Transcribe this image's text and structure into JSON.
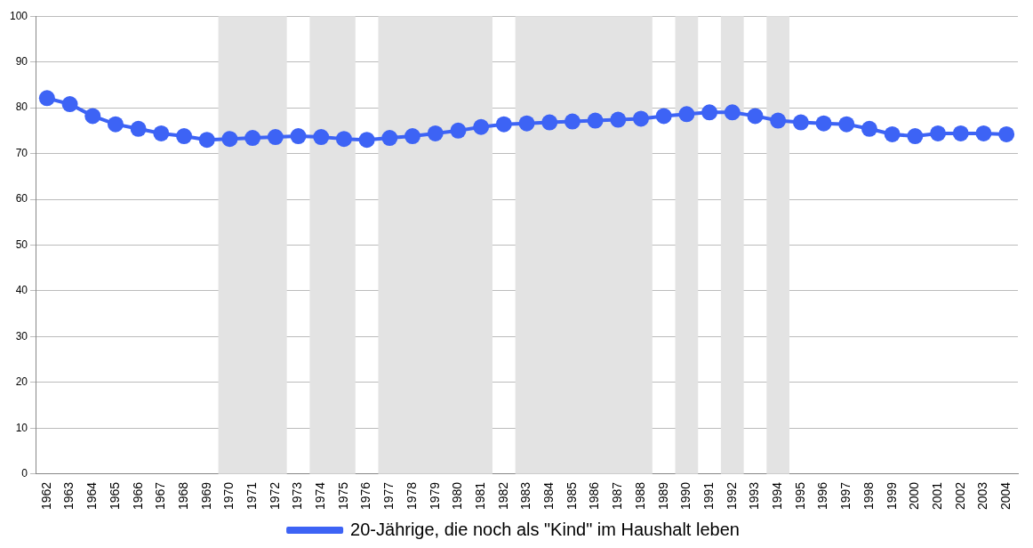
{
  "chart_data": {
    "type": "line",
    "categories": [
      "1962",
      "1963",
      "1964",
      "1965",
      "1966",
      "1967",
      "1968",
      "1969",
      "1970",
      "1971",
      "1972",
      "1973",
      "1974",
      "1975",
      "1976",
      "1977",
      "1978",
      "1979",
      "1980",
      "1981",
      "1982",
      "1983",
      "1984",
      "1985",
      "1986",
      "1987",
      "1988",
      "1989",
      "1990",
      "1991",
      "1992",
      "1993",
      "1994",
      "1995",
      "1996",
      "1997",
      "1998",
      "1999",
      "2000",
      "2001",
      "2002",
      "2003",
      "2004"
    ],
    "series": [
      {
        "name": "20-Jährige, die noch als \"Kind\" im Haushalt leben",
        "color": "#3d63f5",
        "values": [
          82.1,
          80.8,
          78.2,
          76.4,
          75.4,
          74.4,
          73.8,
          73.0,
          73.2,
          73.4,
          73.6,
          73.8,
          73.6,
          73.2,
          73.0,
          73.4,
          73.8,
          74.4,
          75.0,
          75.8,
          76.4,
          76.6,
          76.8,
          77.0,
          77.2,
          77.4,
          77.6,
          78.2,
          78.6,
          79.0,
          79.0,
          78.2,
          77.2,
          76.8,
          76.6,
          76.4,
          75.4,
          74.2,
          73.8,
          74.4,
          74.4,
          74.4,
          74.2
        ]
      }
    ],
    "bands": [
      {
        "axis": "x",
        "from": "1970",
        "to": "1972",
        "color": "#e3e3e3"
      },
      {
        "axis": "x",
        "from": "1974",
        "to": "1975",
        "color": "#e3e3e3"
      },
      {
        "axis": "x",
        "from": "1977",
        "to": "1981",
        "color": "#e3e3e3"
      },
      {
        "axis": "x",
        "from": "1983",
        "to": "1988",
        "color": "#e3e3e3"
      },
      {
        "axis": "x",
        "from": "1990",
        "to": "1990",
        "color": "#e3e3e3"
      },
      {
        "axis": "x",
        "from": "1992",
        "to": "1992",
        "color": "#e3e3e3"
      },
      {
        "axis": "x",
        "from": "1994",
        "to": "1994",
        "color": "#e3e3e3"
      }
    ],
    "ylim": [
      0,
      100
    ],
    "yticks": [
      0,
      10,
      20,
      30,
      40,
      50,
      60,
      70,
      80,
      90,
      100
    ],
    "grid": "y",
    "legend": "bottom",
    "marker": "circle",
    "line_style": "solid"
  }
}
